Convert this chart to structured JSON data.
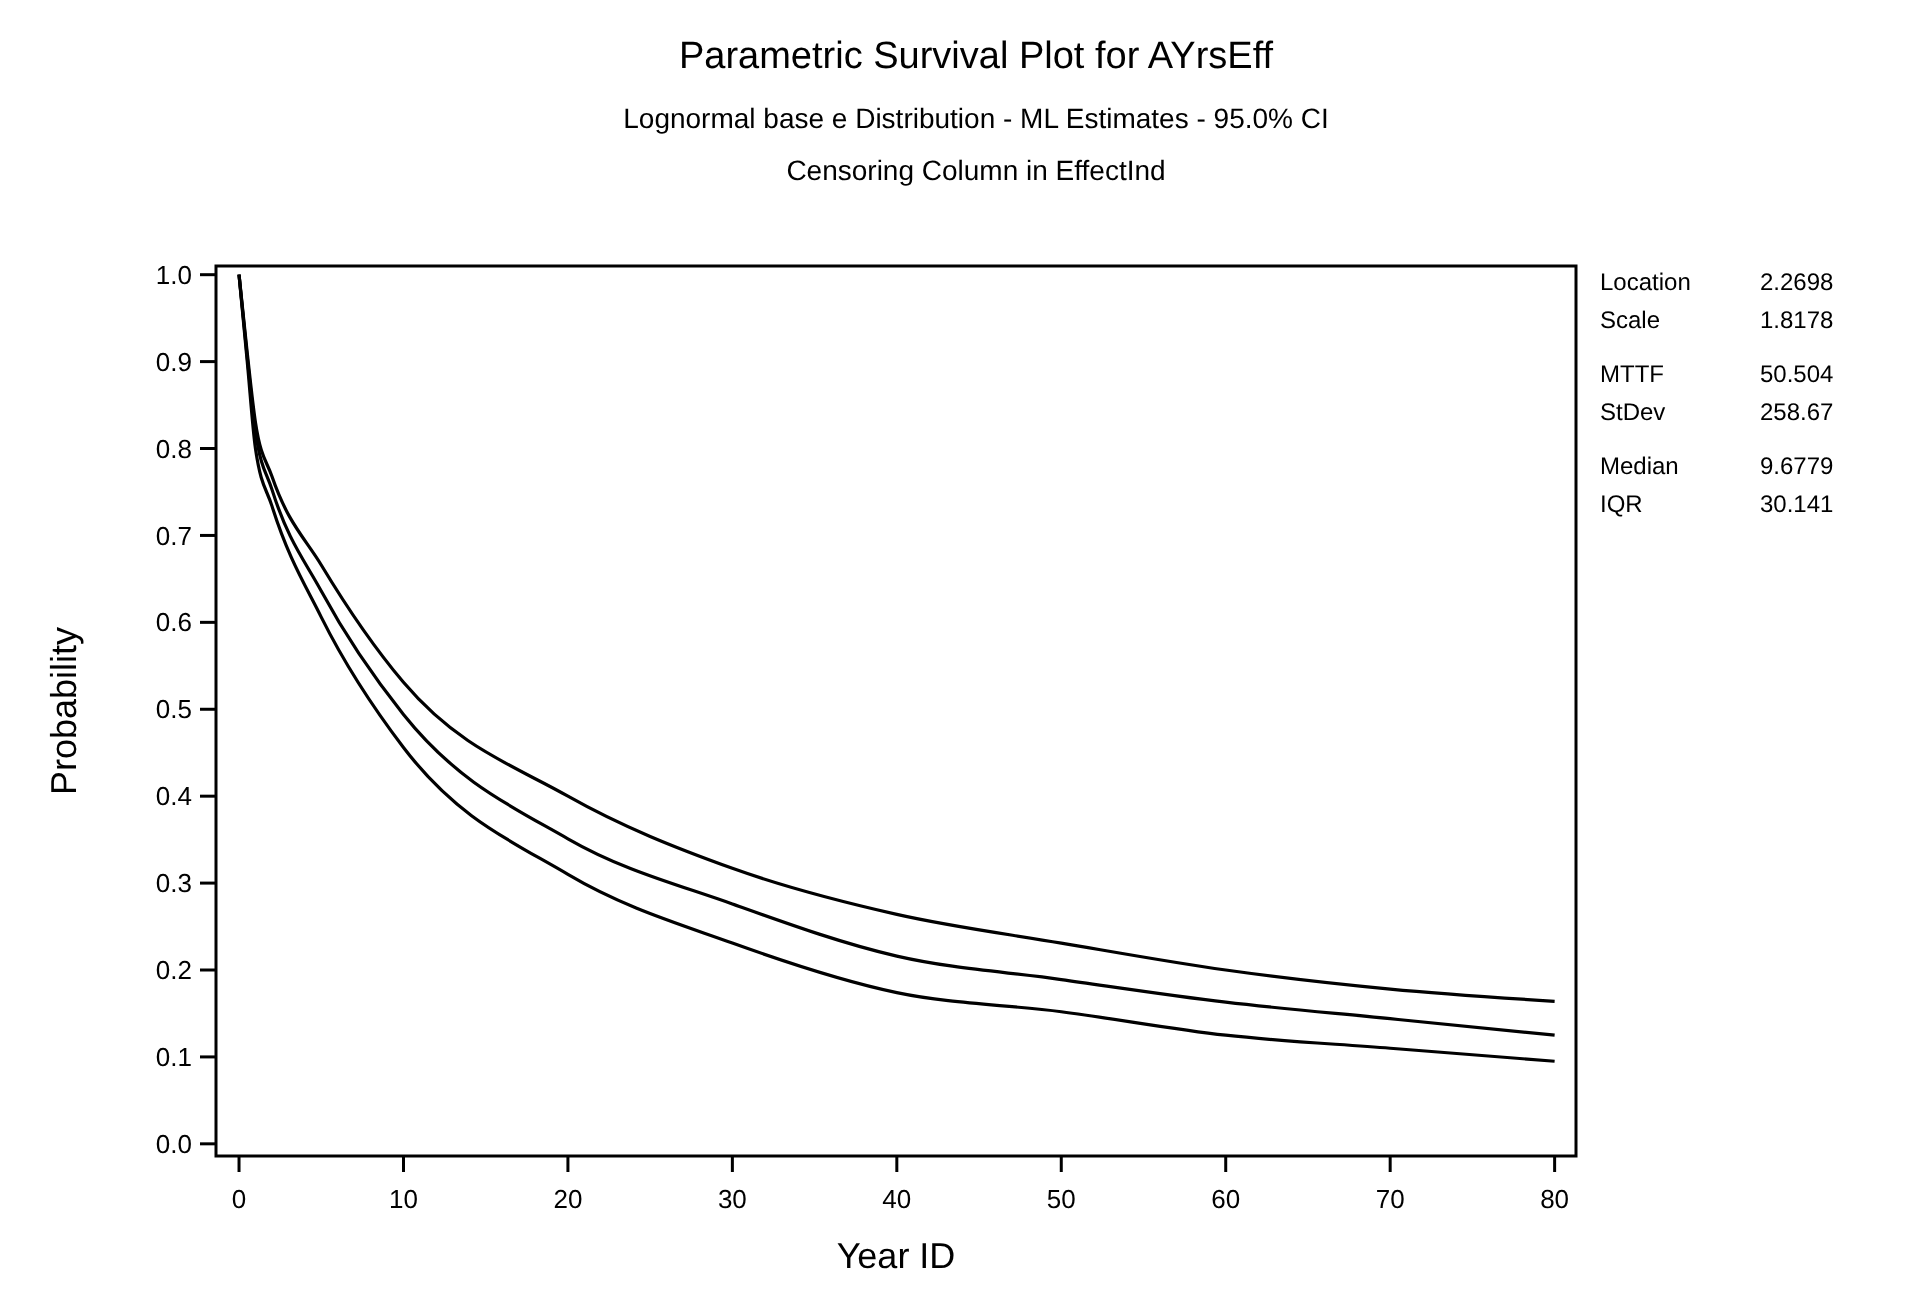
{
  "chart_data": {
    "type": "line",
    "title": "Parametric Survival Plot for AYrsEff",
    "subtitle": "Lognormal base e Distribution - ML Estimates - 95.0% CI\nCensoring Column in EffectInd",
    "xlabel": "Year ID",
    "ylabel": "Probability",
    "x": [
      0,
      0.5,
      1,
      2,
      5,
      10,
      20,
      30,
      40,
      50,
      60,
      70,
      80
    ],
    "series": [
      {
        "color": "#000000",
        "values": [
          1.0,
          0.91,
          0.83,
          0.768,
          0.666,
          0.531,
          0.4,
          0.317,
          0.264,
          0.231,
          0.2,
          0.178,
          0.164
        ]
      },
      {
        "color": "#000000",
        "values": [
          1.0,
          0.905,
          0.82,
          0.753,
          0.636,
          0.494,
          0.351,
          0.276,
          0.216,
          0.189,
          0.163,
          0.144,
          0.125
        ]
      },
      {
        "color": "#000000",
        "values": [
          1.0,
          0.9,
          0.8,
          0.734,
          0.606,
          0.456,
          0.31,
          0.231,
          0.174,
          0.152,
          0.125,
          0.11,
          0.095
        ]
      }
    ],
    "xlim": [
      -1.4,
      81.3
    ],
    "xticks": [
      0,
      10,
      20,
      30,
      40,
      50,
      60,
      70,
      80
    ],
    "ylim": [
      -0.014,
      1.01
    ],
    "yticks": [
      {
        "value": 0,
        "label": "0.0"
      },
      0.1,
      0.2,
      0.3,
      0.4,
      0.5,
      0.6,
      0.7,
      0.8,
      0.9,
      {
        "value": 1,
        "label": "1.0"
      }
    ],
    "grid": false,
    "line_style": "solid",
    "marker": "none",
    "annotations": [
      "Location",
      "2.2698",
      "Scale",
      "1.8178",
      "MTTF",
      "50.504",
      "StDev",
      "258.67",
      "Median",
      "9.6779",
      "IQR",
      "30.141"
    ]
  }
}
